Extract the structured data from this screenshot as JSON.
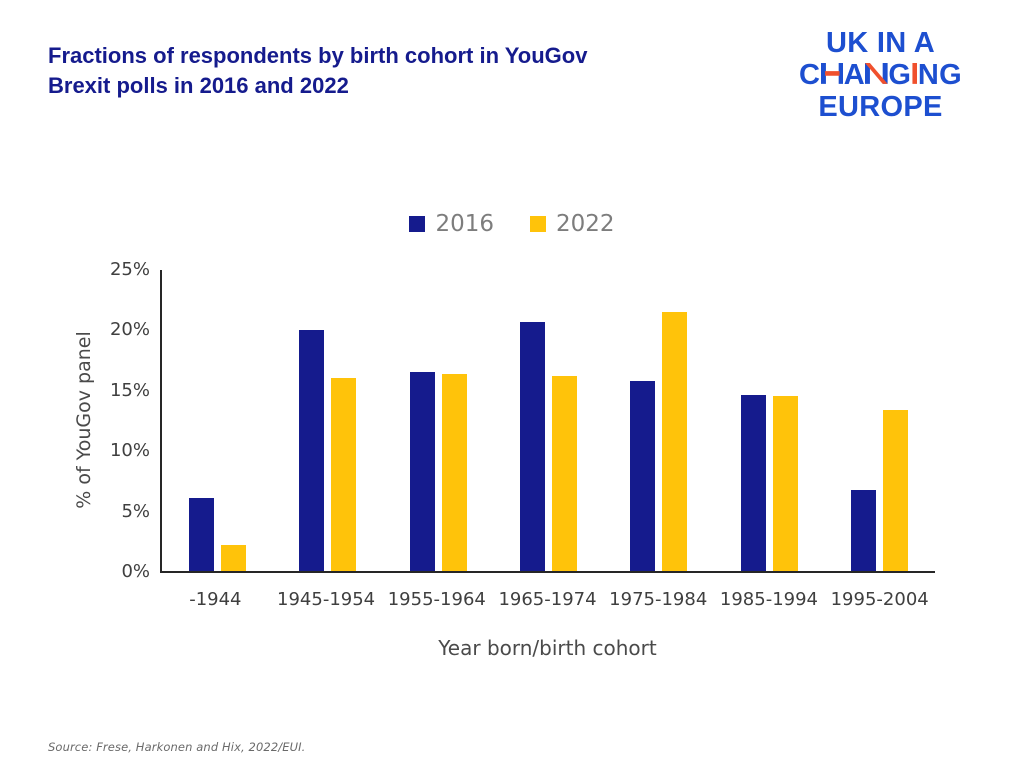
{
  "title": {
    "line1": "Fractions of respondents by birth cohort in YouGov",
    "line2": "Brexit polls in 2016 and 2022"
  },
  "logo": {
    "line1": "UK IN A",
    "line2": "CHANGING",
    "line3": "EUROPE",
    "blue": "#1d4fd0",
    "red": "#f0502d"
  },
  "chart_data": {
    "type": "bar",
    "title": "Fractions of respondents by birth cohort in YouGov Brexit polls in 2016 and 2022",
    "categories": [
      "-1944",
      "1945-1954",
      "1955-1964",
      "1965-1974",
      "1975-1984",
      "1985-1994",
      "1995-2004"
    ],
    "series": [
      {
        "name": "2016",
        "color": "#151b8d",
        "values": [
          6.1,
          20.0,
          16.5,
          20.7,
          15.8,
          14.6,
          6.7
        ]
      },
      {
        "name": "2022",
        "color": "#ffc30a",
        "values": [
          2.2,
          16.0,
          16.4,
          16.2,
          21.5,
          14.5,
          13.4
        ]
      }
    ],
    "xlabel": "Year born/birth cohort",
    "ylabel": "% of YouGov panel",
    "yticks": [
      "0%",
      "5%",
      "10%",
      "15%",
      "20%",
      "25%"
    ],
    "ylim": [
      0,
      25
    ],
    "grid": false,
    "legend_position": "top-center"
  },
  "source": "Source: Frese, Harkonen and Hix, 2022/EUI."
}
